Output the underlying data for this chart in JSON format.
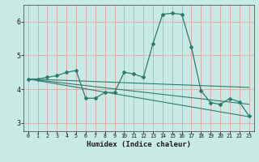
{
  "title": "",
  "xlabel": "Humidex (Indice chaleur)",
  "bg_color": "#c8eae4",
  "grid_color": "#e8a0a0",
  "line_color": "#2e7b6e",
  "xlim": [
    -0.5,
    23.5
  ],
  "ylim": [
    2.75,
    6.5
  ],
  "xticks": [
    0,
    1,
    2,
    3,
    4,
    5,
    6,
    7,
    8,
    9,
    10,
    11,
    12,
    13,
    14,
    15,
    16,
    17,
    18,
    19,
    20,
    21,
    22,
    23
  ],
  "yticks": [
    3,
    4,
    5,
    6
  ],
  "series_main": {
    "x": [
      0,
      1,
      2,
      3,
      4,
      5,
      6,
      7,
      8,
      9,
      10,
      11,
      12,
      13,
      14,
      15,
      16,
      17,
      18,
      19,
      20,
      21,
      22,
      23
    ],
    "y": [
      4.3,
      4.3,
      4.35,
      4.4,
      4.5,
      4.55,
      3.73,
      3.73,
      3.9,
      3.9,
      4.5,
      4.45,
      4.35,
      5.35,
      6.22,
      6.25,
      6.22,
      5.25,
      3.95,
      3.6,
      3.55,
      3.72,
      3.62,
      3.2
    ]
  },
  "trend_lines": [
    {
      "x": [
        0,
        23
      ],
      "y": [
        4.3,
        3.18
      ]
    },
    {
      "x": [
        0,
        23
      ],
      "y": [
        4.3,
        3.55
      ]
    },
    {
      "x": [
        0,
        23
      ],
      "y": [
        4.3,
        4.05
      ]
    }
  ]
}
